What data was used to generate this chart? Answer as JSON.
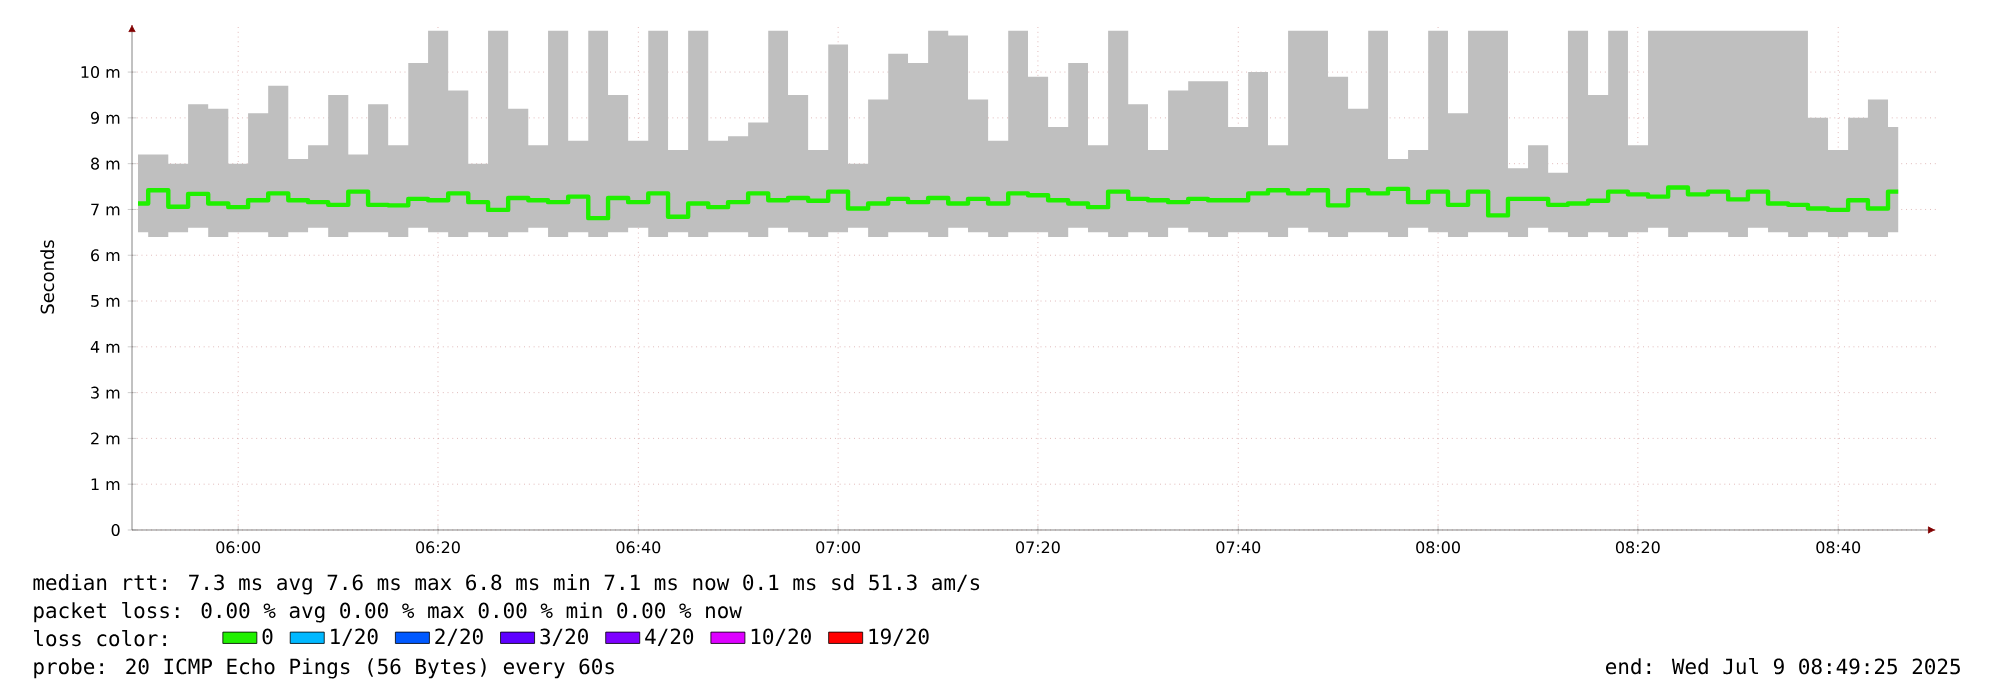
{
  "chart_data": {
    "type": "step",
    "ylabel": "Seconds",
    "x": [
      5.833,
      5.867,
      5.9,
      5.933,
      5.967,
      6.0,
      6.033,
      6.067,
      6.1,
      6.133,
      6.167,
      6.2,
      6.233,
      6.267,
      6.3,
      6.333,
      6.367,
      6.4,
      6.433,
      6.467,
      6.5,
      6.533,
      6.567,
      6.6,
      6.633,
      6.667,
      6.7,
      6.733,
      6.767,
      6.8,
      6.833,
      6.867,
      6.9,
      6.933,
      6.967,
      7.0,
      7.033,
      7.067,
      7.1,
      7.133,
      7.167,
      7.2,
      7.233,
      7.267,
      7.3,
      7.333,
      7.367,
      7.4,
      7.433,
      7.467,
      7.5,
      7.533,
      7.567,
      7.6,
      7.633,
      7.667,
      7.7,
      7.733,
      7.767,
      7.8,
      7.833,
      7.867,
      7.9,
      7.933,
      7.967,
      8.0,
      8.033,
      8.067,
      8.1,
      8.133,
      8.167,
      8.2,
      8.233,
      8.267,
      8.3,
      8.333,
      8.367,
      8.4,
      8.433,
      8.467,
      8.5,
      8.533,
      8.567,
      8.6,
      8.633,
      8.667,
      8.7,
      8.733,
      8.767
    ],
    "series": [
      {
        "name": "0",
        "color": "#20f000",
        "values": [
          7.13,
          7.42,
          7.06,
          7.34,
          7.13,
          7.05,
          7.2,
          7.35,
          7.2,
          7.16,
          7.1,
          7.39,
          7.1,
          7.09,
          7.23,
          7.2,
          7.35,
          7.16,
          6.99,
          7.25,
          7.2,
          7.16,
          7.28,
          6.81,
          7.25,
          7.16,
          7.35,
          6.84,
          7.13,
          7.05,
          7.16,
          7.35,
          7.2,
          7.25,
          7.19,
          7.39,
          7.02,
          7.13,
          7.23,
          7.16,
          7.25,
          7.13,
          7.23,
          7.13,
          7.35,
          7.31,
          7.2,
          7.13,
          7.05,
          7.39,
          7.23,
          7.2,
          7.16,
          7.23,
          7.2,
          7.2,
          7.35,
          7.42,
          7.35,
          7.42,
          7.09,
          7.42,
          7.35,
          7.45,
          7.16,
          7.39,
          7.1,
          7.39,
          6.87,
          7.23,
          7.23,
          7.1,
          7.13,
          7.19,
          7.39,
          7.33,
          7.28,
          7.48,
          7.33,
          7.39,
          7.22,
          7.39,
          7.13,
          7.1,
          7.02,
          6.99,
          7.2,
          7.02,
          7.39
        ],
        "lower": [
          6.5,
          6.4,
          6.5,
          6.6,
          6.4,
          6.5,
          6.5,
          6.4,
          6.5,
          6.6,
          6.4,
          6.5,
          6.5,
          6.4,
          6.6,
          6.5,
          6.4,
          6.5,
          6.4,
          6.5,
          6.6,
          6.4,
          6.5,
          6.4,
          6.5,
          6.6,
          6.4,
          6.5,
          6.4,
          6.5,
          6.5,
          6.4,
          6.6,
          6.5,
          6.4,
          6.5,
          6.6,
          6.4,
          6.5,
          6.5,
          6.4,
          6.6,
          6.5,
          6.4,
          6.5,
          6.5,
          6.4,
          6.6,
          6.5,
          6.4,
          6.5,
          6.4,
          6.6,
          6.5,
          6.4,
          6.5,
          6.5,
          6.4,
          6.6,
          6.5,
          6.4,
          6.5,
          6.5,
          6.4,
          6.6,
          6.5,
          6.4,
          6.5,
          6.5,
          6.4,
          6.6,
          6.5,
          6.4,
          6.5,
          6.4,
          6.5,
          6.6,
          6.4,
          6.5,
          6.5,
          6.4,
          6.6,
          6.5,
          6.4,
          6.5,
          6.4,
          6.5,
          6.4,
          6.5
        ],
        "upper": [
          8.2,
          8.2,
          8.0,
          9.3,
          9.2,
          8.0,
          9.1,
          9.7,
          8.1,
          8.4,
          9.5,
          8.2,
          9.3,
          8.4,
          10.2,
          10.9,
          9.6,
          8.0,
          10.9,
          9.2,
          8.4,
          10.9,
          8.5,
          10.9,
          9.5,
          8.5,
          10.9,
          8.3,
          10.9,
          8.5,
          8.6,
          8.9,
          10.9,
          9.5,
          8.3,
          10.6,
          8.0,
          9.4,
          10.4,
          10.2,
          10.9,
          10.8,
          9.4,
          8.5,
          10.9,
          9.9,
          8.8,
          10.2,
          8.4,
          10.9,
          9.3,
          8.3,
          9.6,
          9.8,
          9.8,
          8.8,
          10.0,
          8.4,
          10.9,
          10.9,
          9.9,
          9.2,
          10.9,
          8.1,
          8.3,
          10.9,
          9.1,
          10.9,
          10.9,
          7.9,
          8.4,
          7.8,
          10.9,
          9.5,
          10.9,
          8.4,
          10.9,
          10.9,
          10.9,
          10.9,
          10.9,
          10.9,
          10.9,
          10.9,
          9.0,
          8.3,
          9.0,
          9.4,
          8.8
        ]
      },
      {
        "name": "1/20",
        "color": "#00b8ff",
        "values": [
          null,
          null,
          null,
          null,
          null,
          null,
          null,
          null,
          null,
          null,
          null,
          null,
          null,
          null,
          null,
          null,
          null,
          null,
          null,
          null,
          null,
          null,
          null,
          null,
          null,
          null,
          null,
          null,
          null,
          null,
          null,
          null,
          null,
          null,
          null,
          null,
          null,
          null,
          null,
          null,
          null,
          null,
          null,
          null,
          null,
          null,
          null,
          null,
          null,
          null,
          null,
          null,
          null,
          null,
          null,
          null,
          null,
          null,
          null,
          null,
          null,
          null,
          null,
          null,
          null,
          null,
          null,
          null,
          null,
          null,
          null,
          null,
          null,
          null,
          null,
          null,
          null,
          null,
          null,
          null,
          null,
          null,
          null,
          null,
          null,
          null,
          null,
          null,
          null
        ]
      },
      {
        "name": "2/20",
        "color": "#0059ff",
        "values": [
          null,
          null,
          null,
          null,
          null,
          null,
          null,
          null,
          null,
          null,
          null,
          null,
          null,
          null,
          null,
          null,
          null,
          null,
          null,
          null,
          null,
          null,
          null,
          null,
          null,
          null,
          null,
          null,
          null,
          null,
          null,
          null,
          null,
          null,
          null,
          null,
          null,
          null,
          null,
          null,
          null,
          null,
          null,
          null,
          null,
          null,
          null,
          null,
          null,
          null,
          null,
          null,
          null,
          null,
          null,
          null,
          null,
          null,
          null,
          null,
          null,
          null,
          null,
          null,
          null,
          null,
          null,
          null,
          null,
          null,
          null,
          null,
          null,
          null,
          null,
          null,
          null,
          null,
          null,
          null,
          null,
          null,
          null,
          null,
          null,
          null,
          null,
          null,
          null
        ]
      },
      {
        "name": "3/20",
        "color": "#5e00ff",
        "values": [
          null,
          null,
          null,
          null,
          null,
          null,
          null,
          null,
          null,
          null,
          null,
          null,
          null,
          null,
          null,
          null,
          null,
          null,
          null,
          null,
          null,
          null,
          null,
          null,
          null,
          null,
          null,
          null,
          null,
          null,
          null,
          null,
          null,
          null,
          null,
          null,
          null,
          null,
          null,
          null,
          null,
          null,
          null,
          null,
          null,
          null,
          null,
          null,
          null,
          null,
          null,
          null,
          null,
          null,
          null,
          null,
          null,
          null,
          null,
          null,
          null,
          null,
          null,
          null,
          null,
          null,
          null,
          null,
          null,
          null,
          null,
          null,
          null,
          null,
          null,
          null,
          null,
          null,
          null,
          null,
          null,
          null,
          null,
          null,
          null,
          null,
          null,
          null,
          null
        ]
      },
      {
        "name": "4/20",
        "color": "#7e00ff",
        "values": [
          null,
          null,
          null,
          null,
          null,
          null,
          null,
          null,
          null,
          null,
          null,
          null,
          null,
          null,
          null,
          null,
          null,
          null,
          null,
          null,
          null,
          null,
          null,
          null,
          null,
          null,
          null,
          null,
          null,
          null,
          null,
          null,
          null,
          null,
          null,
          null,
          null,
          null,
          null,
          null,
          null,
          null,
          null,
          null,
          null,
          null,
          null,
          null,
          null,
          null,
          null,
          null,
          null,
          null,
          null,
          null,
          null,
          null,
          null,
          null,
          null,
          null,
          null,
          null,
          null,
          null,
          null,
          null,
          null,
          null,
          null,
          null,
          null,
          null,
          null,
          null,
          null,
          null,
          null,
          null,
          null,
          null,
          null,
          null,
          null,
          null,
          null,
          null,
          null
        ]
      },
      {
        "name": "10/20",
        "color": "#dd00ff",
        "values": [
          null,
          null,
          null,
          null,
          null,
          null,
          null,
          null,
          null,
          null,
          null,
          null,
          null,
          null,
          null,
          null,
          null,
          null,
          null,
          null,
          null,
          null,
          null,
          null,
          null,
          null,
          null,
          null,
          null,
          null,
          null,
          null,
          null,
          null,
          null,
          null,
          null,
          null,
          null,
          null,
          null,
          null,
          null,
          null,
          null,
          null,
          null,
          null,
          null,
          null,
          null,
          null,
          null,
          null,
          null,
          null,
          null,
          null,
          null,
          null,
          null,
          null,
          null,
          null,
          null,
          null,
          null,
          null,
          null,
          null,
          null,
          null,
          null,
          null,
          null,
          null,
          null,
          null,
          null,
          null,
          null,
          null,
          null,
          null,
          null,
          null,
          null,
          null,
          null
        ]
      },
      {
        "name": "19/20",
        "color": "#ff0000",
        "values": [
          null,
          null,
          null,
          null,
          null,
          null,
          null,
          null,
          null,
          null,
          null,
          null,
          null,
          null,
          null,
          null,
          null,
          null,
          null,
          null,
          null,
          null,
          null,
          null,
          null,
          null,
          null,
          null,
          null,
          null,
          null,
          null,
          null,
          null,
          null,
          null,
          null,
          null,
          null,
          null,
          null,
          null,
          null,
          null,
          null,
          null,
          null,
          null,
          null,
          null,
          null,
          null,
          null,
          null,
          null,
          null,
          null,
          null,
          null,
          null,
          null,
          null,
          null,
          null,
          null,
          null,
          null,
          null,
          null,
          null,
          null,
          null,
          null,
          null,
          null,
          null,
          null,
          null,
          null,
          null,
          null,
          null,
          null,
          null,
          null,
          null,
          null,
          null,
          null
        ]
      }
    ],
    "xlim": [
      5.823,
      8.83
    ],
    "ylim": [
      0,
      11.05
    ],
    "xticks": [
      {
        "value": 6,
        "label": "06:00"
      },
      {
        "value": 6.333,
        "label": "06:20"
      },
      {
        "value": 6.667,
        "label": "06:40"
      },
      {
        "value": 7,
        "label": "07:00"
      },
      {
        "value": 7.333,
        "label": "07:20"
      },
      {
        "value": 7.667,
        "label": "07:40"
      },
      {
        "value": 8,
        "label": "08:00"
      },
      {
        "value": 8.333,
        "label": "08:20"
      },
      {
        "value": 8.667,
        "label": "08:40"
      }
    ],
    "yticks": [
      0,
      {
        "value": 1,
        "label": "1 m"
      },
      {
        "value": 2,
        "label": "2 m"
      },
      {
        "value": 3,
        "label": "3 m"
      },
      {
        "value": 4,
        "label": "4 m"
      },
      {
        "value": 5,
        "label": "5 m"
      },
      {
        "value": 6,
        "label": "6 m"
      },
      {
        "value": 7,
        "label": "7 m"
      },
      {
        "value": 8,
        "label": "8 m"
      },
      {
        "value": 9,
        "label": "9 m"
      },
      {
        "value": 10,
        "label": "10 m"
      }
    ],
    "grid": true,
    "legend": "bottom",
    "annotations": [
      "median rtt:  7.3 ms avg  7.6 ms max  6.8 ms min  7.1 ms now  0.1 ms sd  51.3   am/s",
      "packet loss: 0.00 % avg  0.00 % max  0.00 % min  0.00 % now",
      "loss color:",
      "probe:       20 ICMP Echo Pings (56 Bytes) every 60s",
      "end: Wed Jul  9 08:49:25 2025"
    ]
  }
}
